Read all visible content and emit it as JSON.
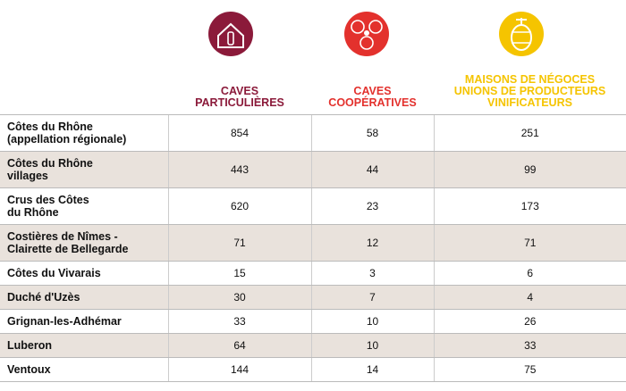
{
  "table": {
    "columns": [
      {
        "lines": [
          "CAVES",
          "PARTICULIÈRES"
        ],
        "color": "#8b1a3a"
      },
      {
        "lines": [
          "CAVES",
          "COOPÉRATIVES"
        ],
        "color": "#e3312d"
      },
      {
        "lines": [
          "MAISONS DE NÉGOCES",
          "UNIONS DE PRODUCTEURS",
          "VINIFICATEURS"
        ],
        "color": "#f5c400"
      }
    ],
    "rows": [
      {
        "label": [
          "Côtes du Rhône",
          "(appellation régionale)"
        ],
        "values": [
          854,
          58,
          251
        ]
      },
      {
        "label": [
          "Côtes du Rhône",
          "villages"
        ],
        "values": [
          443,
          44,
          99
        ]
      },
      {
        "label": [
          "Crus des Côtes",
          "du Rhône"
        ],
        "values": [
          620,
          23,
          173
        ]
      },
      {
        "label": [
          "Costières de Nîmes -",
          "Clairette de Bellegarde"
        ],
        "values": [
          71,
          12,
          71
        ]
      },
      {
        "label": [
          "Côtes du Vivarais"
        ],
        "values": [
          15,
          3,
          6
        ]
      },
      {
        "label": [
          "Duché d'Uzès"
        ],
        "values": [
          30,
          7,
          4
        ]
      },
      {
        "label": [
          "Grignan-les-Adhémar"
        ],
        "values": [
          33,
          10,
          26
        ]
      },
      {
        "label": [
          "Luberon"
        ],
        "values": [
          64,
          10,
          33
        ]
      },
      {
        "label": [
          "Ventoux"
        ],
        "values": [
          144,
          14,
          75
        ]
      }
    ]
  }
}
